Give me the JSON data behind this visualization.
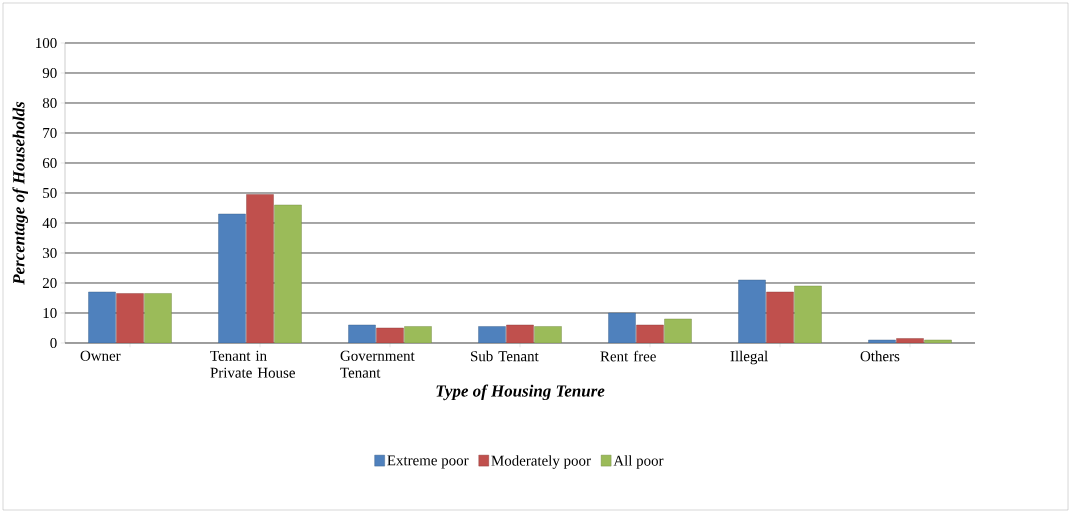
{
  "chart_data": {
    "type": "bar",
    "xlabel": "Type of Housing Tenure",
    "ylabel": "Percentage of Households",
    "categories": [
      "Owner",
      "Tenant in Private House",
      "Government Tenant",
      "Sub Tenant",
      "Rent free",
      "Illegal",
      "Others"
    ],
    "series": [
      {
        "name": "Extreme poor",
        "color": "#4f81bd",
        "values": [
          17,
          43,
          6,
          5.5,
          10,
          21,
          1
        ]
      },
      {
        "name": "Moderately poor",
        "color": "#c0504d",
        "values": [
          16.5,
          49.5,
          5,
          6,
          6,
          17,
          1.5
        ]
      },
      {
        "name": "All poor",
        "color": "#9bbb59",
        "values": [
          16.5,
          46,
          5.5,
          5.5,
          8,
          19,
          1
        ]
      }
    ],
    "ylim": [
      0,
      100
    ],
    "yticks": [
      0,
      10,
      20,
      30,
      40,
      50,
      60,
      70,
      80,
      90,
      100
    ],
    "grid": "y",
    "legend": "bottom"
  }
}
